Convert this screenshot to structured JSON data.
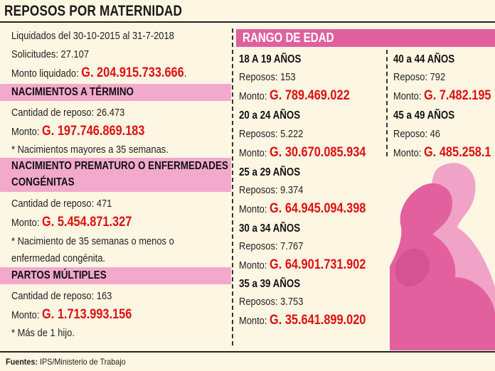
{
  "title": "REPOSOS POR MATERNIDAD",
  "summary": {
    "liquidados": "Liquidados del 30-10-2015 al 31-7-2018",
    "solicitudes": "Solicitudes: 27.107",
    "monto_label": "Monto liquidado: ",
    "monto_value": "G. 204.915.733.666",
    "monto_end": "."
  },
  "sections": [
    {
      "header": "NACIMIENTOS A TÉRMINO",
      "cantidad": "Cantidad de reposo: 26.473",
      "monto_label": "Monto: ",
      "monto_value": "G. 197.746.869.183",
      "note": "* Nacimientos mayores a 35 semanas."
    },
    {
      "header_line1": "NACIMIENTO PREMATURO O ENFERMEDADES",
      "header_line2": "CONGÉNITAS",
      "cantidad": "Cantidad de reposo: 471",
      "monto_label": "Monto: ",
      "monto_value": "G. 5.454.871.327",
      "note_line1": "* Nacimiento de 35 semanas o menos o",
      "note_line2": "enfermedad congénita."
    },
    {
      "header": "PARTOS MÚLTIPLES",
      "cantidad": "Cantidad de reposo: 163",
      "monto_label": "Monto: ",
      "monto_value": "G. 1.713.993.156",
      "note": "* Más de 1 hijo."
    }
  ],
  "rango": {
    "header": "RANGO DE EDAD",
    "left": [
      {
        "age": "18 A 19 AÑOS",
        "reposos": "Reposos: 153",
        "monto_label": "Monto: ",
        "monto_value": "G. 789.469.022"
      },
      {
        "age": "20 a 24 AÑOS",
        "reposos": "Reposos: 5.222",
        "monto_label": "Monto: ",
        "monto_value": "G. 30.670.085.934"
      },
      {
        "age": "25 a 29 AÑOS",
        "reposos": "Reposos: 9.374",
        "monto_label": "Monto: ",
        "monto_value": "G. 64.945.094.398"
      },
      {
        "age": "30 a 34 AÑOS",
        "reposos": "Reposos: 7.767",
        "monto_label": "Monto: ",
        "monto_value": "G. 64.901.731.902"
      },
      {
        "age": "35 a 39 AÑOS",
        "reposos": "Reposos: 3.753",
        "monto_label": "Monto: ",
        "monto_value": "G. 35.641.899.020"
      }
    ],
    "right": [
      {
        "age": "40 a 44 AÑOS",
        "reposos": "Reposo: 792",
        "monto_label": "Monto: ",
        "monto_value": "G. 7.482.195"
      },
      {
        "age": "45 a 49 AÑOS",
        "reposos": "Reposo: 46",
        "monto_label": "Monto: ",
        "monto_value": "G. 485.258.1"
      }
    ]
  },
  "footer": {
    "label": "Fuentes:",
    "text": " IPS/Ministerio de Trabajo"
  },
  "colors": {
    "bar_pink": "#f2a9cc",
    "rango_pink": "#e0609d",
    "money_red": "#dd1111",
    "background": "#fdf6e3"
  },
  "illustration": "pregnant-woman-silhouette"
}
